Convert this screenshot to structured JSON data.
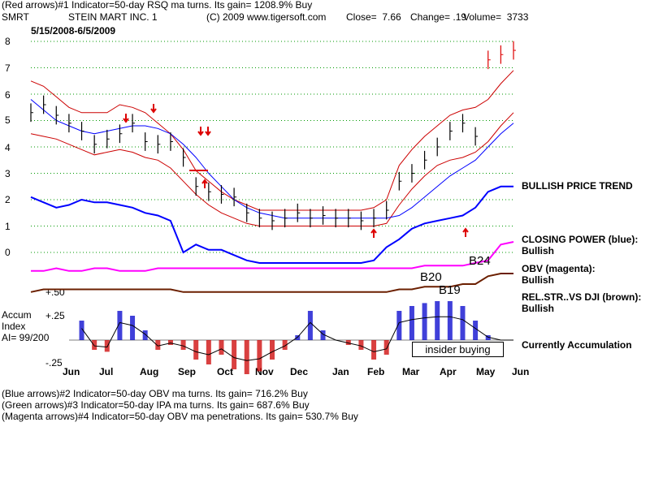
{
  "header": {
    "line1": "(Red arrows)#1 Indicator=50-day RSQ ma turns. Its gain= 1208.9% Buy",
    "symbol": "SMRT",
    "company": "STEIN MART INC. 1",
    "copyright": "(C) 2009 www.tigersoft.com",
    "close": "Close=  7.66",
    "change": "Change= .19",
    "volume": "Volume=  3733",
    "date_range": "5/15/2008-6/5/2009"
  },
  "right_labels": {
    "bullish_trend": "BULLISH PRICE TREND",
    "closing_power": "CLOSING POWER (blue):",
    "closing_power_state": "Bullish",
    "obv": "OBV (magenta):",
    "obv_state": "Bullish",
    "relstr": "REL.STR..VS DJI (brown):",
    "relstr_state": "Bullish",
    "accum_state": "Currently Accumulation"
  },
  "accum_labels": {
    "title1": "Accum",
    "title2": "Index",
    "ai": "AI= 99/200",
    "top": "+.25",
    "bottom": "-.25",
    "mid_left": "+.50"
  },
  "markers": {
    "b20": "B20",
    "b24": "B24",
    "b19": "B19",
    "insider": "insider buying"
  },
  "footer": {
    "line1": "(Blue arrows)#2 Indicator=50-day OBV ma turns. Its gain= 716.2% Buy",
    "line2": "(Green arrows)#3 Indicator=50-day IPA ma turns. Its gain= 687.6% Buy",
    "line3": "(Magenta arrows)#4 Indicator=50-day OBV ma penetrations. Its gain= 530.7% Buy"
  },
  "colors": {
    "price_bars": "#000000",
    "band": "#cc0000",
    "blue_ma": "#0000ff",
    "closing_power": "#0000ff",
    "obv": "#ff00ff",
    "relstr": "#6b1f00",
    "accum_pos": "#0000cc",
    "accum_neg": "#cc0000",
    "grid": "#009900",
    "arrows": "#dd0000"
  },
  "chart_data": {
    "type": "line",
    "y_ticks": [
      "8",
      "7",
      "6",
      "5",
      "4",
      "3",
      "2",
      "1",
      "0"
    ],
    "x_ticks": [
      "Jun",
      "Jul",
      "Aug",
      "Sep",
      "Oct",
      "Nov",
      "Dec",
      "Jan",
      "Feb",
      "Mar",
      "Apr",
      "May",
      "Jun"
    ],
    "ylim": [
      0,
      8
    ],
    "grid": true,
    "price_series": {
      "x": [
        "2008-05-15",
        "2008-05-25",
        "2008-06-05",
        "2008-06-15",
        "2008-06-25",
        "2008-07-05",
        "2008-07-15",
        "2008-07-25",
        "2008-08-05",
        "2008-08-15",
        "2008-08-25",
        "2008-09-05",
        "2008-09-15",
        "2008-09-25",
        "2008-10-05",
        "2008-10-15",
        "2008-10-25",
        "2008-11-05",
        "2008-11-15",
        "2008-11-25",
        "2008-12-05",
        "2008-12-15",
        "2008-12-25",
        "2009-01-05",
        "2009-01-15",
        "2009-01-25",
        "2009-02-05",
        "2009-02-15",
        "2009-02-25",
        "2009-03-05",
        "2009-03-15",
        "2009-03-25",
        "2009-04-05",
        "2009-04-15",
        "2009-04-25",
        "2009-05-05",
        "2009-05-15",
        "2009-05-25",
        "2009-06-05"
      ],
      "close": [
        5.3,
        5.6,
        5.2,
        4.9,
        4.6,
        4.1,
        4.3,
        4.5,
        4.9,
        4.2,
        4.1,
        4.2,
        3.6,
        2.5,
        2.3,
        2.2,
        2.1,
        1.5,
        1.3,
        1.2,
        1.3,
        1.5,
        1.3,
        1.4,
        1.3,
        1.3,
        1.2,
        1.3,
        1.6,
        2.7,
        3.0,
        3.5,
        4.0,
        4.6,
        4.9,
        4.4,
        7.3,
        7.5,
        7.66
      ]
    },
    "upper_band": [
      6.5,
      6.3,
      5.9,
      5.5,
      5.3,
      5.3,
      5.3,
      5.6,
      5.5,
      5.3,
      4.9,
      4.5,
      3.9,
      3.1,
      2.7,
      2.3,
      2.0,
      1.8,
      1.6,
      1.6,
      1.6,
      1.6,
      1.6,
      1.6,
      1.6,
      1.6,
      1.6,
      1.7,
      2.0,
      3.3,
      3.9,
      4.4,
      4.8,
      5.2,
      5.4,
      5.5,
      5.8,
      6.4,
      6.9
    ],
    "lower_band": [
      4.5,
      4.4,
      4.3,
      4.1,
      3.9,
      3.7,
      3.8,
      3.9,
      3.8,
      3.6,
      3.5,
      3.2,
      2.7,
      2.2,
      1.8,
      1.5,
      1.3,
      1.1,
      1.0,
      1.0,
      1.0,
      1.0,
      1.0,
      1.0,
      1.0,
      1.0,
      1.0,
      1.0,
      1.1,
      1.8,
      2.4,
      2.9,
      3.3,
      3.5,
      3.6,
      3.8,
      4.2,
      4.8,
      5.3
    ],
    "blue_ma": [
      5.8,
      5.4,
      5.0,
      4.8,
      4.6,
      4.5,
      4.6,
      4.7,
      4.8,
      4.8,
      4.7,
      4.5,
      4.1,
      3.6,
      3.0,
      2.5,
      2.0,
      1.7,
      1.5,
      1.4,
      1.3,
      1.3,
      1.3,
      1.3,
      1.3,
      1.3,
      1.3,
      1.3,
      1.3,
      1.4,
      1.7,
      2.1,
      2.5,
      2.9,
      3.2,
      3.5,
      4.0,
      4.5,
      4.9
    ],
    "closing_power": [
      2.1,
      1.9,
      1.7,
      1.8,
      2.0,
      1.9,
      1.9,
      1.8,
      1.7,
      1.5,
      1.4,
      1.2,
      0.0,
      0.3,
      0.1,
      0.1,
      -0.1,
      -0.3,
      -0.4,
      -0.4,
      -0.4,
      -0.4,
      -0.4,
      -0.4,
      -0.4,
      -0.4,
      -0.4,
      -0.3,
      0.2,
      0.5,
      0.9,
      1.1,
      1.2,
      1.3,
      1.4,
      1.7,
      2.3,
      2.5,
      2.5
    ],
    "obv": [
      -0.7,
      -0.7,
      -0.6,
      -0.7,
      -0.7,
      -0.6,
      -0.6,
      -0.7,
      -0.7,
      -0.7,
      -0.6,
      -0.6,
      -0.6,
      -0.6,
      -0.6,
      -0.6,
      -0.6,
      -0.6,
      -0.6,
      -0.6,
      -0.6,
      -0.6,
      -0.6,
      -0.6,
      -0.6,
      -0.6,
      -0.6,
      -0.6,
      -0.6,
      -0.6,
      -0.6,
      -0.5,
      -0.5,
      -0.5,
      -0.5,
      -0.4,
      -0.3,
      0.3,
      0.4
    ],
    "relstr": [
      -1.5,
      -1.4,
      -1.4,
      -1.4,
      -1.4,
      -1.4,
      -1.4,
      -1.4,
      -1.4,
      -1.4,
      -1.4,
      -1.4,
      -1.5,
      -1.5,
      -1.5,
      -1.5,
      -1.5,
      -1.5,
      -1.5,
      -1.5,
      -1.5,
      -1.5,
      -1.5,
      -1.5,
      -1.5,
      -1.5,
      -1.5,
      -1.5,
      -1.5,
      -1.4,
      -1.4,
      -1.3,
      -1.3,
      -1.3,
      -1.2,
      -1.2,
      -0.9,
      -0.8,
      -0.8
    ],
    "accum_index": [
      0.0,
      -0.1,
      0.05,
      0.15,
      0.2,
      -0.1,
      -0.12,
      0.3,
      0.25,
      0.1,
      -0.1,
      -0.05,
      -0.1,
      -0.2,
      -0.25,
      -0.15,
      -0.3,
      -0.35,
      -0.32,
      -0.2,
      -0.1,
      0.05,
      0.3,
      0.1,
      0.0,
      -0.05,
      -0.1,
      -0.2,
      -0.15,
      0.3,
      0.35,
      0.38,
      0.4,
      0.4,
      0.35,
      0.2,
      0.05,
      0.0,
      0.0
    ]
  }
}
